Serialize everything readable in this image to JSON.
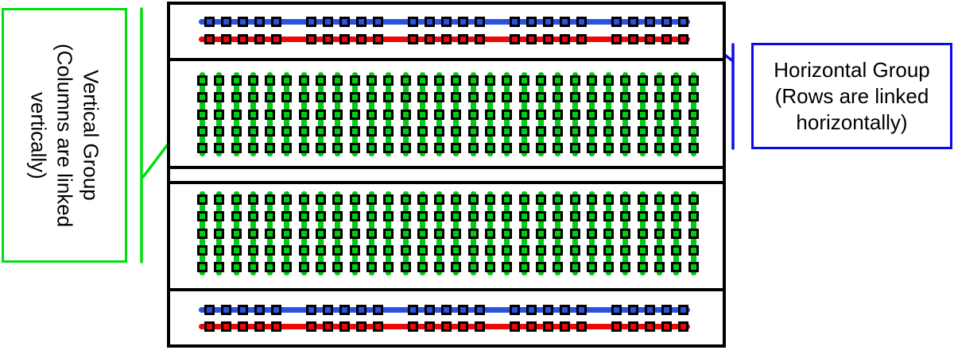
{
  "left_callout": {
    "lines": [
      "Vertical Group",
      "(Columns are linked",
      "vertically)"
    ],
    "border_color": "#00e00e"
  },
  "right_callout": {
    "lines": [
      "Horizontal Group",
      "(Rows are linked",
      "horizontally)"
    ],
    "border_color": "#0a0af0"
  },
  "colors": {
    "rail_blue": "#2a52e0",
    "rail_red": "#ee0808",
    "pin_green": "#00cc11",
    "callout_green": "#00e00e",
    "callout_blue": "#0a0af0",
    "outline": "#000000"
  },
  "board": {
    "power_rails": {
      "groups": 5,
      "squares_per_group": 5,
      "strips": [
        {
          "position": "top",
          "rows": [
            {
              "name": "top-rail-blue-row",
              "color_key": "rail_blue"
            },
            {
              "name": "top-rail-red-row",
              "color_key": "rail_red"
            }
          ]
        },
        {
          "position": "bottom",
          "rows": [
            {
              "name": "bottom-rail-blue-row",
              "color_key": "rail_blue"
            },
            {
              "name": "bottom-rail-red-row",
              "color_key": "rail_red"
            }
          ]
        }
      ]
    },
    "terminal_sections": {
      "count": 2,
      "columns": 30,
      "rows_per_column": 5,
      "color_key": "pin_green"
    }
  }
}
